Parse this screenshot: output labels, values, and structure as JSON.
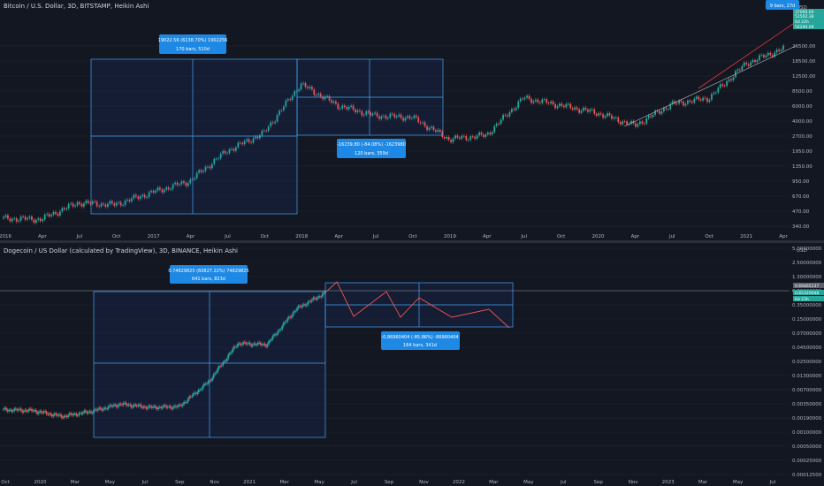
{
  "colors": {
    "bg": "#131722",
    "up": "#26a69a",
    "down": "#ef5350",
    "grid": "#1e222d",
    "axis_text": "#b2b5be",
    "box": "#2962ff",
    "box_line": "#42a5f5",
    "label_bg": "#1e88e5",
    "label_text": "#ffffff",
    "trend_red": "#e53935",
    "trend_gray": "#b2b5be",
    "projection": "#ef5350",
    "price_tag": "#26a69a"
  },
  "top": {
    "title": "Bitcoin / U.S. Dollar, 3D, BITSTAMP, Heikin Ashi",
    "currency": "USD",
    "y_ticks": [
      "26500.00",
      "18500.00",
      "12500.00",
      "8500.00",
      "6000.00",
      "4000.00",
      "2700.00",
      "1950.00",
      "1350.00",
      "950.00",
      "670.00",
      "470.00",
      "340.00"
    ],
    "x_ticks": [
      "2016",
      "Apr",
      "Jul",
      "Oct",
      "2017",
      "Apr",
      "Jul",
      "Oct",
      "2018",
      "Apr",
      "Jul",
      "Oct",
      "2019",
      "Apr",
      "Jul",
      "Oct",
      "2020",
      "Apr",
      "Jul",
      "Oct",
      "2021",
      "Apr"
    ],
    "price_tags": [
      "USD",
      "37000.00",
      "51502.38",
      "6d 22h",
      "56290.09"
    ],
    "bars_badge": "9 bars, 27d",
    "measure1": {
      "line1": "19022.56 (6138.70%) 1902256",
      "line2": "170 bars, 510d"
    },
    "measure2": {
      "line1": "-16239.80 (-84.08%) -1623980",
      "line2": "120 bars, 359d"
    }
  },
  "bottom": {
    "title": "Dogecoin / US Dollar (calculated by TradingView), 3D, BINANCE, Heikin Ashi",
    "currency": "USD",
    "y_ticks": [
      "5.00000000",
      "2.50000000",
      "1.30000000",
      "0.70000000",
      "0.35000000",
      "0.15000000",
      "0.07000000",
      "0.04500000",
      "0.02500000",
      "0.01300000",
      "0.00700000",
      "0.00350000",
      "0.00190000",
      "0.00100000",
      "0.00050000",
      "0.00025000",
      "0.00012500"
    ],
    "x_ticks": [
      "Oct",
      "2020",
      "Mar",
      "May",
      "Jul",
      "Sep",
      "Nov",
      "2021",
      "Mar",
      "May",
      "Jul",
      "Sep",
      "Nov",
      "2022",
      "Mar",
      "May",
      "Jul",
      "Sep",
      "Nov",
      "2023",
      "Mar",
      "May",
      "Jul"
    ],
    "price_tags": [
      "0.69465137",
      "0.65320048",
      "6d 23h"
    ],
    "measure1": {
      "line1": "0.74629825 (60827.22%) 74629825",
      "line2": "641 bars, 823d"
    },
    "measure2": {
      "line1": "-0.86960404 (-85.86%) -86960404",
      "line2": "164 bars, 341d"
    }
  },
  "chart_data": [
    {
      "type": "candlestick",
      "title": "Bitcoin / U.S. Dollar, 3D, BITSTAMP, Heikin Ashi",
      "scale": "log",
      "ylim": [
        340,
        45000
      ],
      "x": [
        "2015-12",
        "2016-03",
        "2016-06",
        "2016-09",
        "2016-12",
        "2017-03",
        "2017-06",
        "2017-09",
        "2017-12",
        "2018-03",
        "2018-06",
        "2018-09",
        "2018-12",
        "2019-03",
        "2019-06",
        "2019-09",
        "2019-12",
        "2020-03",
        "2020-06",
        "2020-09",
        "2020-12",
        "2021-02"
      ],
      "close": [
        420,
        410,
        640,
        610,
        850,
        1150,
        2600,
        4200,
        16000,
        9000,
        6800,
        6500,
        3600,
        4000,
        11000,
        9000,
        7300,
        5200,
        9300,
        11000,
        28000,
        42000
      ]
    },
    {
      "type": "candlestick",
      "title": "Dogecoin / US Dollar (calculated by TradingView), 3D, BINANCE, Heikin Ashi",
      "scale": "log",
      "ylim": [
        0.000125,
        5
      ],
      "x": [
        "2019-10",
        "2020-01",
        "2020-03",
        "2020-05",
        "2020-07",
        "2020-09",
        "2020-11",
        "2021-01",
        "2021-02",
        "2021-03",
        "2021-04",
        "2021-05"
      ],
      "close": [
        0.0026,
        0.0025,
        0.0019,
        0.0024,
        0.0034,
        0.0029,
        0.003,
        0.0095,
        0.058,
        0.055,
        0.29,
        0.62
      ]
    }
  ]
}
